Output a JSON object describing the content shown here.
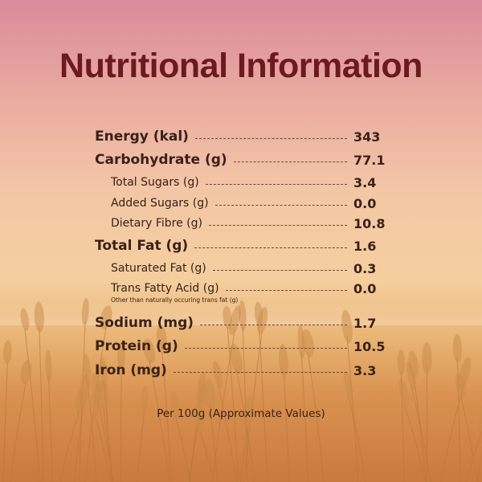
{
  "title": "Nutritional Information",
  "nutrients": [
    {
      "label": "Energy (kal)",
      "value": "343",
      "level": "main"
    },
    {
      "label": "Carbohydrate (g)",
      "value": "77.1",
      "level": "main"
    },
    {
      "label": "Total Sugars (g)",
      "value": "3.4",
      "level": "sub"
    },
    {
      "label": "Added Sugars (g)",
      "value": "0.0",
      "level": "sub"
    },
    {
      "label": "Dietary Fibre (g)",
      "value": "10.8",
      "level": "sub"
    },
    {
      "label": "Total Fat (g)",
      "value": "1.6",
      "level": "main"
    },
    {
      "label": "Saturated Fat (g)",
      "value": "0.3",
      "level": "sub"
    },
    {
      "label": "Trans Fatty Acid (g)",
      "value": "0.0",
      "level": "sub"
    },
    {
      "label": "Sodium (mg)",
      "value": "1.7",
      "level": "main"
    },
    {
      "label": "Protein (g)",
      "value": "10.5",
      "level": "main"
    },
    {
      "label": "Iron (mg)",
      "value": "3.3",
      "level": "main"
    }
  ],
  "trans_fat_note": "Other than naturally occuring trans fat (g)",
  "footer": "Per 100g (Approximate Values)"
}
